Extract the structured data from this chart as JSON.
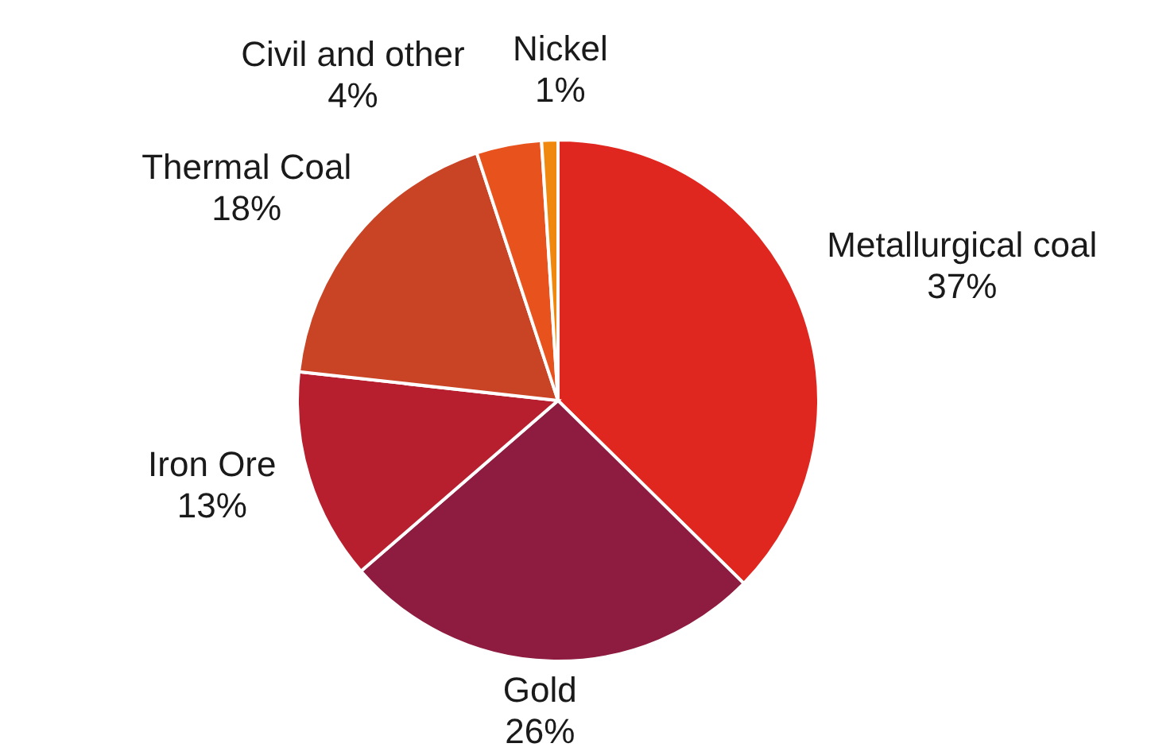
{
  "chart_data": {
    "type": "pie",
    "categories": [
      "Metallurgical coal",
      "Gold",
      "Iron Ore",
      "Thermal Coal",
      "Civil and other",
      "Nickel"
    ],
    "values": [
      37,
      26,
      13,
      18,
      4,
      1
    ],
    "value_labels": [
      "37%",
      "26%",
      "13%",
      "18%",
      "4%",
      "1%"
    ],
    "colors": [
      "#e0271f",
      "#8e1b40",
      "#b81f2e",
      "#c94425",
      "#e8521d",
      "#f0880f"
    ],
    "legend": false
  }
}
